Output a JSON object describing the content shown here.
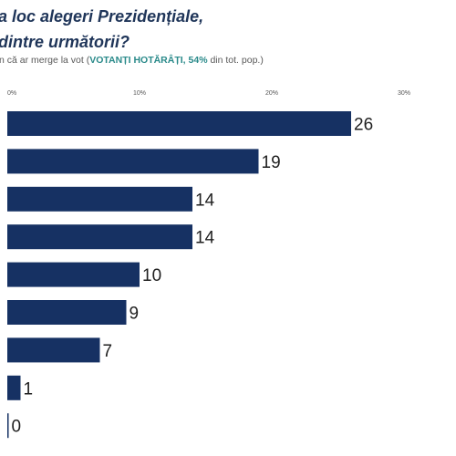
{
  "title_line1": "a loc alegeri Prezidențiale,",
  "title_line2": "dintre următorii?",
  "subtitle": {
    "prefix": "n că ar merge la vot (",
    "highlight": "VOTANȚI HOTĂRÂȚI, 54%",
    "suffix": " din tot. pop.)"
  },
  "chart_data": {
    "type": "bar",
    "orientation": "horizontal",
    "categories": [
      "",
      "",
      "",
      "",
      "",
      "",
      "",
      "",
      ""
    ],
    "values": [
      26,
      19,
      14,
      14,
      10,
      9,
      7,
      1,
      0
    ],
    "xlim": [
      0,
      30
    ],
    "ticks": [
      {
        "value": 0,
        "label": "0%"
      },
      {
        "value": 10,
        "label": "10%"
      },
      {
        "value": 20,
        "label": "20%"
      },
      {
        "value": 30,
        "label": "30%"
      }
    ],
    "bar_color": "#163163",
    "grid": false,
    "legend": "none"
  }
}
